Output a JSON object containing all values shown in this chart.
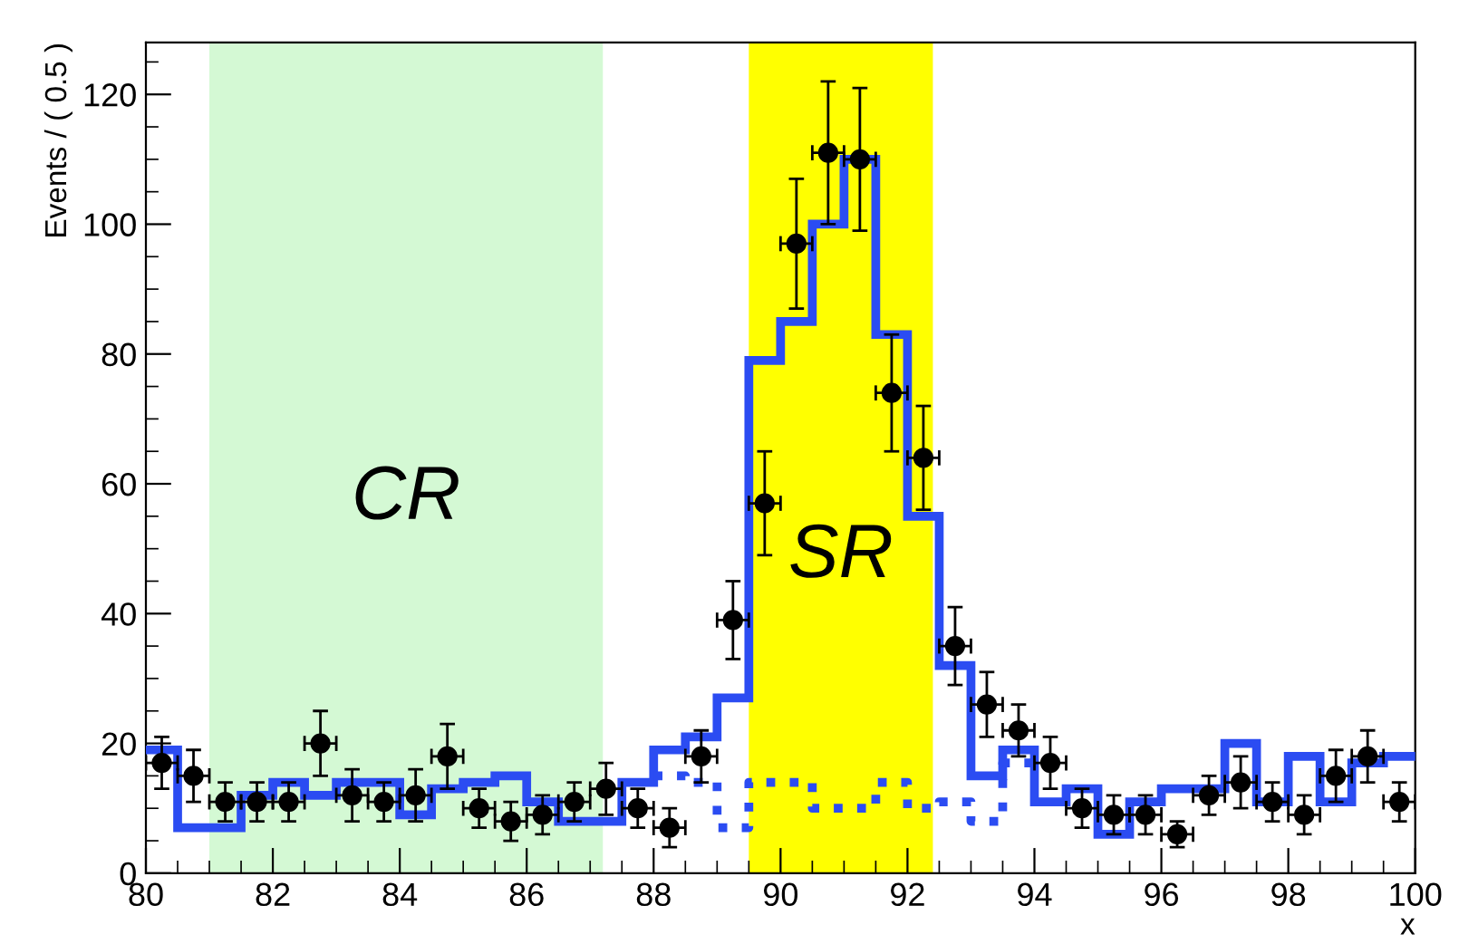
{
  "chart_data": {
    "type": "step",
    "xlabel": "x",
    "ylabel": "Events / ( 0.5 )",
    "series": [
      {
        "color": "#2b4cf2",
        "line_style": "solid",
        "x": [
          80,
          80.5,
          81,
          81.5,
          82,
          82.5,
          83,
          83.5,
          84,
          84.5,
          85,
          85.5,
          86,
          86.5,
          87,
          87.5,
          88,
          88.5,
          89,
          89.5,
          90,
          90.5,
          91,
          91.5,
          92,
          92.5,
          93,
          93.5,
          94,
          94.5,
          95,
          95.5,
          96,
          96.5,
          97,
          97.5,
          98,
          98.5,
          99,
          99.5,
          100
        ],
        "values": [
          19,
          7,
          7,
          12,
          14,
          12,
          14,
          14,
          9,
          13,
          14,
          15,
          11,
          8,
          8,
          14,
          19,
          21,
          27,
          79,
          85,
          100,
          110,
          83,
          55,
          32,
          15,
          19,
          11,
          13,
          6,
          11,
          13,
          13,
          20,
          11,
          18,
          11,
          17,
          18,
          18
        ]
      },
      {
        "color": "#2b4cf2",
        "line_style": "dotted",
        "x": [
          88,
          88.5,
          89,
          89.5,
          90,
          90.5,
          91,
          91.5,
          92,
          92.5,
          93,
          93.5,
          94
        ],
        "values": [
          15,
          14,
          7,
          14,
          14,
          10,
          10,
          14,
          10,
          11,
          8,
          17,
          17
        ]
      },
      {
        "type": "scatter",
        "color": "#000000",
        "marker": "circle",
        "x": [
          80.25,
          80.75,
          81.25,
          81.75,
          82.25,
          82.75,
          83.25,
          83.75,
          84.25,
          84.75,
          85.25,
          85.75,
          86.25,
          86.75,
          87.25,
          87.75,
          88.25,
          88.75,
          89.25,
          89.75,
          90.25,
          90.75,
          91.25,
          91.75,
          92.25,
          92.75,
          93.25,
          93.75,
          94.25,
          94.75,
          95.25,
          95.75,
          96.25,
          96.75,
          97.25,
          97.75,
          98.25,
          98.75,
          99.25,
          99.75
        ],
        "values": [
          17,
          15,
          11,
          11,
          11,
          20,
          12,
          11,
          12,
          18,
          10,
          8,
          9,
          11,
          13,
          10,
          7,
          18,
          39,
          57,
          97,
          111,
          110,
          74,
          64,
          35,
          26,
          22,
          17,
          10,
          9,
          9,
          6,
          12,
          14,
          11,
          9,
          15,
          18,
          11
        ],
        "errors": [
          4,
          4,
          3,
          3,
          3,
          5,
          4,
          3,
          4,
          5,
          3,
          3,
          3,
          3,
          4,
          3,
          3,
          4,
          6,
          8,
          10,
          11,
          11,
          9,
          8,
          6,
          5,
          4,
          4,
          3,
          3,
          3,
          2,
          3,
          4,
          3,
          3,
          4,
          4,
          3
        ],
        "xerrors": [
          0.25,
          0.25,
          0.25,
          0.25,
          0.25,
          0.25,
          0.25,
          0.25,
          0.25,
          0.25,
          0.25,
          0.25,
          0.25,
          0.25,
          0.25,
          0.25,
          0.25,
          0.25,
          0.25,
          0.25,
          0.25,
          0.25,
          0.25,
          0.25,
          0.25,
          0.25,
          0.25,
          0.25,
          0.25,
          0.25,
          0.25,
          0.25,
          0.25,
          0.25,
          0.25,
          0.25,
          0.25,
          0.25,
          0.25,
          0.25
        ]
      }
    ],
    "bands": [
      {
        "axis": "x",
        "from": 81,
        "to": 87.2,
        "label": "CR",
        "color": "#d4f9d4"
      },
      {
        "axis": "x",
        "from": 89.5,
        "to": 92.4,
        "label": "SR",
        "color": "#ffff00"
      }
    ],
    "xlim": [
      80,
      100
    ],
    "xticks": [
      80,
      82,
      84,
      86,
      88,
      90,
      92,
      94,
      96,
      98,
      100
    ],
    "ylim": [
      0,
      128
    ],
    "yticks": [
      0,
      20,
      40,
      60,
      80,
      100,
      120
    ],
    "grid": false,
    "legend": false
  }
}
